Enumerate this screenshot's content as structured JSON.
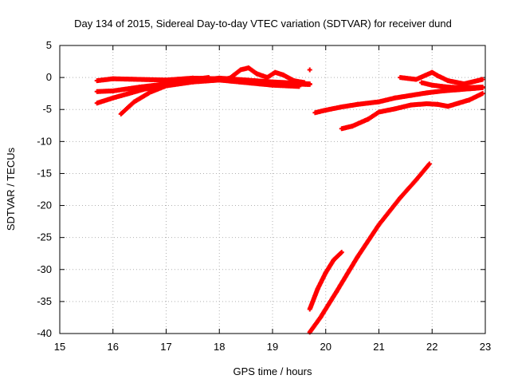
{
  "chart_data": {
    "type": "scatter",
    "title": "Day 134 of 2015, Sidereal Day-to-day VTEC variation (SDTVAR) for receiver dund",
    "xlabel": "GPS time / hours",
    "ylabel": "SDTVAR / TECUs",
    "xlim": [
      15,
      23
    ],
    "ylim": [
      -40,
      5
    ],
    "xticks": [
      15,
      16,
      17,
      18,
      19,
      20,
      21,
      22,
      23
    ],
    "yticks": [
      5,
      0,
      -5,
      -10,
      -15,
      -20,
      -25,
      -30,
      -35,
      -40
    ],
    "grid": true,
    "marker": "plus",
    "color": "#ff0000",
    "series": [
      {
        "x": [
          15.7,
          16.0,
          16.5,
          17.0,
          17.5,
          18.0,
          18.5,
          19.0,
          19.4,
          19.7
        ],
        "y": [
          -0.5,
          -0.2,
          -0.3,
          -0.4,
          -0.1,
          -0.2,
          -0.6,
          -0.9,
          -1.0,
          -1.1
        ]
      },
      {
        "x": [
          15.7,
          16.0,
          16.5,
          17.0,
          17.5,
          18.0,
          18.5,
          19.0,
          19.5,
          19.7
        ],
        "y": [
          -2.2,
          -2.1,
          -1.5,
          -1.0,
          -0.5,
          -0.1,
          -0.4,
          -0.7,
          -0.9,
          -1.0
        ]
      },
      {
        "x": [
          15.7,
          16.0,
          16.3,
          16.6,
          17.0,
          17.5,
          18.0,
          18.5,
          19.0,
          19.5
        ],
        "y": [
          -4.0,
          -3.2,
          -2.5,
          -1.8,
          -1.3,
          -0.7,
          -0.4,
          -0.8,
          -1.2,
          -1.4
        ]
      },
      {
        "x": [
          16.15,
          16.4,
          16.7,
          17.0,
          17.3,
          17.6,
          17.8
        ],
        "y": [
          -5.7,
          -3.8,
          -2.3,
          -1.3,
          -0.6,
          -0.2,
          0.0
        ]
      },
      {
        "x": [
          17.8,
          18.0,
          18.2,
          18.4,
          18.55,
          18.7,
          18.9,
          19.05,
          19.2,
          19.4,
          19.6
        ],
        "y": [
          -0.3,
          -0.4,
          -0.1,
          1.2,
          1.5,
          0.6,
          0.0,
          0.8,
          0.4,
          -0.5,
          -0.8
        ]
      },
      {
        "x": [
          19.7
        ],
        "y": [
          1.2
        ]
      },
      {
        "x": [
          19.8,
          20.0,
          20.3,
          20.6,
          21.0,
          21.3,
          21.6,
          21.9,
          22.2,
          22.5,
          22.8,
          22.95
        ],
        "y": [
          -5.5,
          -5.1,
          -4.6,
          -4.2,
          -3.8,
          -3.2,
          -2.8,
          -2.4,
          -2.1,
          -1.9,
          -1.7,
          -1.6
        ]
      },
      {
        "x": [
          20.3,
          20.5,
          20.8,
          21.0,
          21.3,
          21.6,
          21.9,
          22.1,
          22.3,
          22.5,
          22.7,
          22.95
        ],
        "y": [
          -8.0,
          -7.6,
          -6.5,
          -5.4,
          -4.9,
          -4.3,
          -4.1,
          -4.2,
          -4.5,
          -4.0,
          -3.5,
          -2.5
        ]
      },
      {
        "x": [
          21.4,
          21.7,
          22.0,
          22.1,
          22.3,
          22.6,
          22.95
        ],
        "y": [
          0.0,
          -0.3,
          0.8,
          0.3,
          -0.5,
          -1.0,
          -0.3
        ]
      },
      {
        "x": [
          21.8,
          22.0,
          22.3,
          22.6,
          22.95
        ],
        "y": [
          -0.8,
          -1.2,
          -1.5,
          -1.6,
          -1.5
        ]
      },
      {
        "x": [
          19.7,
          19.9,
          20.2,
          20.6,
          21.0,
          21.4,
          21.7,
          21.95
        ],
        "y": [
          -39.8,
          -37.5,
          -33.5,
          -28.0,
          -23.0,
          -18.8,
          -16.0,
          -13.5
        ]
      },
      {
        "x": [
          19.7,
          19.85,
          20.0,
          20.15,
          20.3
        ],
        "y": [
          -36.2,
          -33.0,
          -30.5,
          -28.5,
          -27.3
        ]
      }
    ]
  }
}
